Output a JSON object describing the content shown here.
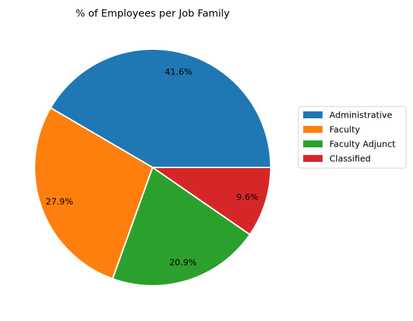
{
  "chart_data": {
    "type": "pie",
    "title": "% of Employees per Job Family",
    "categories": [
      "Administrative",
      "Faculty",
      "Faculty Adjunct",
      "Classified"
    ],
    "values": [
      41.6,
      27.9,
      20.9,
      9.6
    ],
    "value_labels": [
      "41.6%",
      "27.9%",
      "20.9%",
      "9.6%"
    ],
    "colors": [
      "#1f77b4",
      "#ff7f0e",
      "#2ca02c",
      "#d62728"
    ],
    "start_angle_deg": 0,
    "direction": "counterclockwise",
    "legend_position": "right"
  }
}
